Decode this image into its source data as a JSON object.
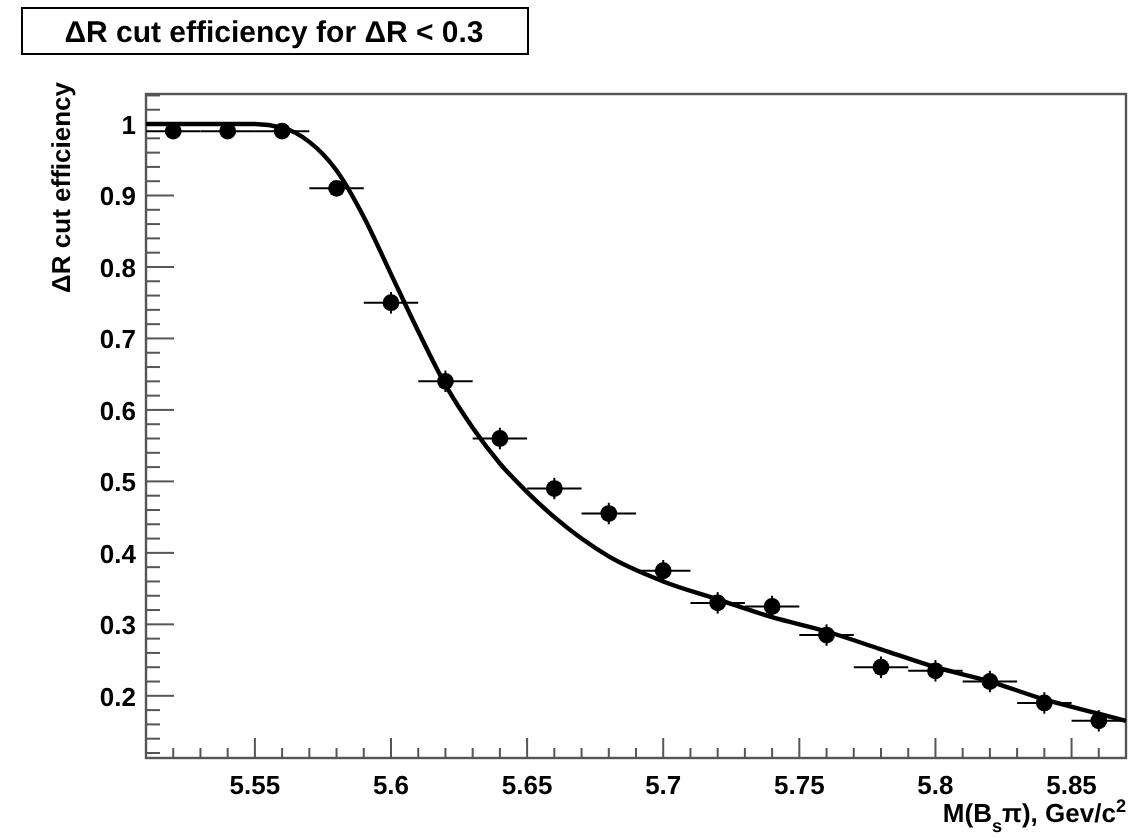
{
  "chart_data": {
    "type": "scatter",
    "title": "ΔR cut efficiency for ΔR < 0.3",
    "xlabel": "M(B$_{s}$π), Gev/c$^{2}$",
    "ylabel": "ΔR cut efficiency",
    "xlim": [
      5.51,
      5.87
    ],
    "ylim": [
      0.113,
      1.042
    ],
    "xticks": [
      {
        "value": 5.52,
        "label": null
      },
      {
        "value": 5.53,
        "label": null
      },
      {
        "value": 5.54,
        "label": null
      },
      5.55,
      {
        "value": 5.56,
        "label": null
      },
      {
        "value": 5.57,
        "label": null
      },
      {
        "value": 5.58,
        "label": null
      },
      {
        "value": 5.59,
        "label": null
      },
      5.6,
      {
        "value": 5.61,
        "label": null
      },
      {
        "value": 5.62,
        "label": null
      },
      {
        "value": 5.63,
        "label": null
      },
      {
        "value": 5.64,
        "label": null
      },
      5.65,
      {
        "value": 5.66,
        "label": null
      },
      {
        "value": 5.67,
        "label": null
      },
      {
        "value": 5.68,
        "label": null
      },
      {
        "value": 5.69,
        "label": null
      },
      5.7,
      {
        "value": 5.71,
        "label": null
      },
      {
        "value": 5.72,
        "label": null
      },
      {
        "value": 5.73,
        "label": null
      },
      {
        "value": 5.74,
        "label": null
      },
      5.75,
      {
        "value": 5.76,
        "label": null
      },
      {
        "value": 5.77,
        "label": null
      },
      {
        "value": 5.78,
        "label": null
      },
      {
        "value": 5.79,
        "label": null
      },
      5.8,
      {
        "value": 5.81,
        "label": null
      },
      {
        "value": 5.82,
        "label": null
      },
      {
        "value": 5.83,
        "label": null
      },
      {
        "value": 5.84,
        "label": null
      },
      5.85,
      {
        "value": 5.86,
        "label": null
      }
    ],
    "yticks": [
      {
        "value": 0.12,
        "label": null
      },
      {
        "value": 0.14,
        "label": null
      },
      {
        "value": 0.16,
        "label": null
      },
      {
        "value": 0.18,
        "label": null
      },
      0.2,
      {
        "value": 0.22,
        "label": null
      },
      {
        "value": 0.24,
        "label": null
      },
      {
        "value": 0.26,
        "label": null
      },
      {
        "value": 0.28,
        "label": null
      },
      0.3,
      {
        "value": 0.32,
        "label": null
      },
      {
        "value": 0.34,
        "label": null
      },
      {
        "value": 0.36,
        "label": null
      },
      {
        "value": 0.38,
        "label": null
      },
      0.4,
      {
        "value": 0.42,
        "label": null
      },
      {
        "value": 0.44,
        "label": null
      },
      {
        "value": 0.46,
        "label": null
      },
      {
        "value": 0.48,
        "label": null
      },
      0.5,
      {
        "value": 0.52,
        "label": null
      },
      {
        "value": 0.54,
        "label": null
      },
      {
        "value": 0.56,
        "label": null
      },
      {
        "value": 0.58,
        "label": null
      },
      0.6,
      {
        "value": 0.62,
        "label": null
      },
      {
        "value": 0.64,
        "label": null
      },
      {
        "value": 0.66,
        "label": null
      },
      {
        "value": 0.68,
        "label": null
      },
      0.7,
      {
        "value": 0.72,
        "label": null
      },
      {
        "value": 0.74,
        "label": null
      },
      {
        "value": 0.76,
        "label": null
      },
      {
        "value": 0.78,
        "label": null
      },
      0.8,
      {
        "value": 0.82,
        "label": null
      },
      {
        "value": 0.84,
        "label": null
      },
      {
        "value": 0.86,
        "label": null
      },
      {
        "value": 0.88,
        "label": null
      },
      0.9,
      {
        "value": 0.92,
        "label": null
      },
      {
        "value": 0.94,
        "label": null
      },
      {
        "value": 0.96,
        "label": null
      },
      {
        "value": 0.98,
        "label": null
      },
      1,
      {
        "value": 1.02,
        "label": null
      },
      {
        "value": 1.04,
        "label": null
      }
    ],
    "grid": false,
    "series": [
      {
        "color": "#000000",
        "marker": "circle",
        "x": [
          5.52,
          5.54,
          5.56,
          5.58,
          5.6,
          5.62,
          5.64,
          5.66,
          5.68,
          5.7,
          5.72,
          5.74,
          5.76,
          5.78,
          5.8,
          5.82,
          5.84,
          5.86
        ],
        "values": [
          0.99,
          0.99,
          0.99,
          0.91,
          0.75,
          0.64,
          0.56,
          0.49,
          0.455,
          0.375,
          0.33,
          0.325,
          0.285,
          0.24,
          0.235,
          0.22,
          0.19,
          0.165
        ],
        "xerrors": [
          0.01,
          0.01,
          0.01,
          0.01,
          0.01,
          0.01,
          0.01,
          0.01,
          0.01,
          0.01,
          0.01,
          0.01,
          0.01,
          0.01,
          0.01,
          0.01,
          0.01,
          0.01
        ],
        "errors": [
          0.01,
          0.01,
          0.01,
          0.01,
          0.015,
          0.015,
          0.015,
          0.015,
          0.015,
          0.015,
          0.015,
          0.015,
          0.015,
          0.015,
          0.015,
          0.015,
          0.015,
          0.015
        ]
      },
      {
        "type": "line",
        "color": "#000000",
        "line_style": "solid",
        "marker": "none",
        "x": [
          5.51,
          5.53,
          5.55,
          5.56,
          5.57,
          5.58,
          5.59,
          5.6,
          5.61,
          5.62,
          5.63,
          5.64,
          5.65,
          5.66,
          5.67,
          5.68,
          5.7,
          5.72,
          5.74,
          5.76,
          5.78,
          5.8,
          5.82,
          5.84,
          5.86,
          5.87
        ],
        "values": [
          1.0,
          1.0,
          1.0,
          0.995,
          0.975,
          0.935,
          0.87,
          0.79,
          0.71,
          0.635,
          0.575,
          0.525,
          0.485,
          0.45,
          0.42,
          0.395,
          0.36,
          0.335,
          0.31,
          0.29,
          0.265,
          0.24,
          0.22,
          0.195,
          0.175,
          0.165
        ]
      }
    ]
  }
}
